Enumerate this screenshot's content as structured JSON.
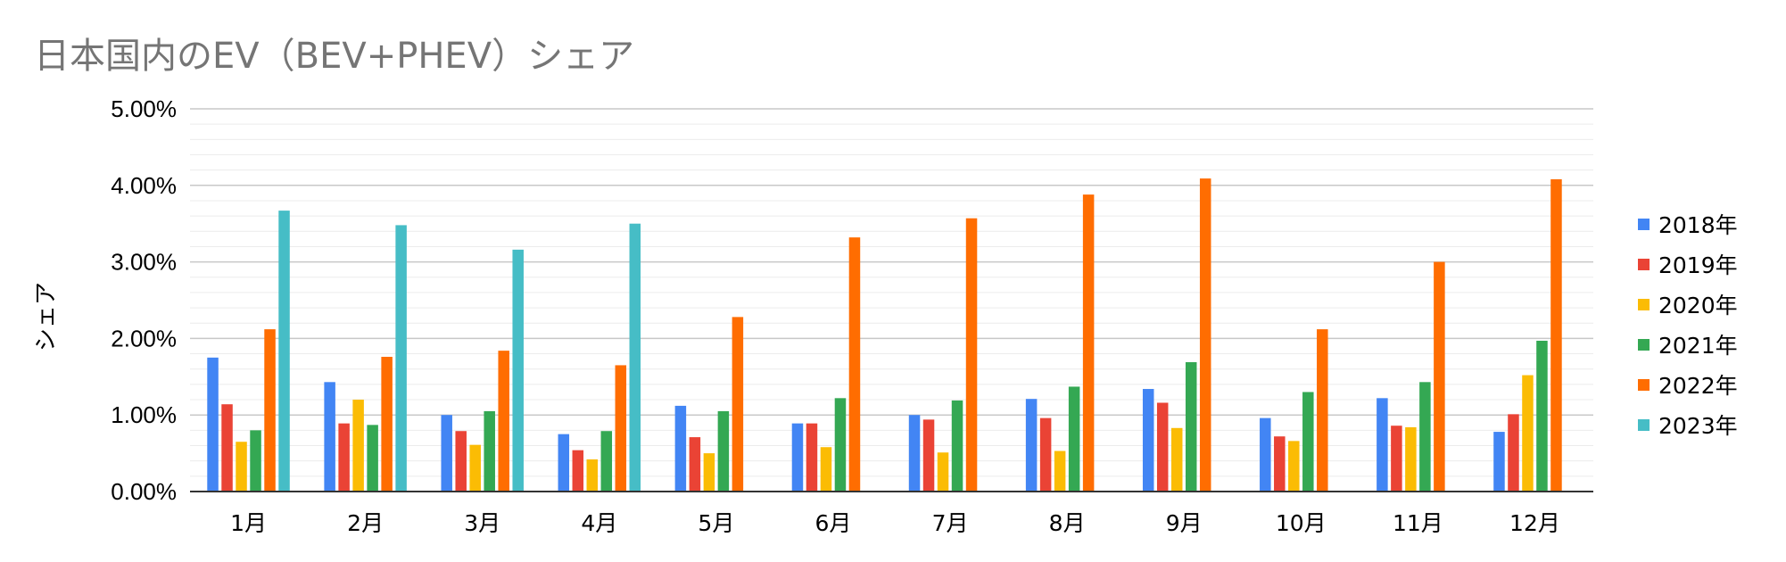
{
  "chart_data": {
    "type": "bar",
    "title": "日本国内のEV（BEV+PHEV）シェア",
    "xlabel": "",
    "ylabel": "シェア",
    "ylim": [
      0,
      0.05
    ],
    "y_ticks": [
      "0.00%",
      "1.00%",
      "2.00%",
      "3.00%",
      "4.00%",
      "5.00%"
    ],
    "grid": true,
    "legend_position": "right",
    "categories": [
      "1月",
      "2月",
      "3月",
      "4月",
      "5月",
      "6月",
      "7月",
      "8月",
      "9月",
      "10月",
      "11月",
      "12月"
    ],
    "series": [
      {
        "name": "2018年",
        "color": "#4285f4",
        "values": [
          0.0175,
          0.0143,
          0.01,
          0.0075,
          0.0112,
          0.0089,
          0.01,
          0.0121,
          0.0134,
          0.0096,
          0.0122,
          0.0078
        ]
      },
      {
        "name": "2019年",
        "color": "#ea4335",
        "values": [
          0.0114,
          0.0089,
          0.0079,
          0.0054,
          0.0071,
          0.0089,
          0.0094,
          0.0096,
          0.0116,
          0.0072,
          0.0086,
          0.0101
        ]
      },
      {
        "name": "2020年",
        "color": "#fbbc04",
        "values": [
          0.0065,
          0.012,
          0.0061,
          0.0042,
          0.005,
          0.0058,
          0.0051,
          0.0053,
          0.0083,
          0.0066,
          0.0084,
          0.0152
        ]
      },
      {
        "name": "2021年",
        "color": "#34a853",
        "values": [
          0.008,
          0.0087,
          0.0105,
          0.0079,
          0.0105,
          0.0122,
          0.0119,
          0.0137,
          0.0169,
          0.013,
          0.0143,
          0.0197
        ]
      },
      {
        "name": "2022年",
        "color": "#ff6d01",
        "values": [
          0.0212,
          0.0176,
          0.0184,
          0.0165,
          0.0228,
          0.0332,
          0.0357,
          0.0388,
          0.0409,
          0.0212,
          0.03,
          0.0408
        ]
      },
      {
        "name": "2023年",
        "color": "#46bdc6",
        "values": [
          0.0367,
          0.0348,
          0.0316,
          0.035,
          null,
          null,
          null,
          null,
          null,
          null,
          null,
          null
        ]
      }
    ]
  }
}
